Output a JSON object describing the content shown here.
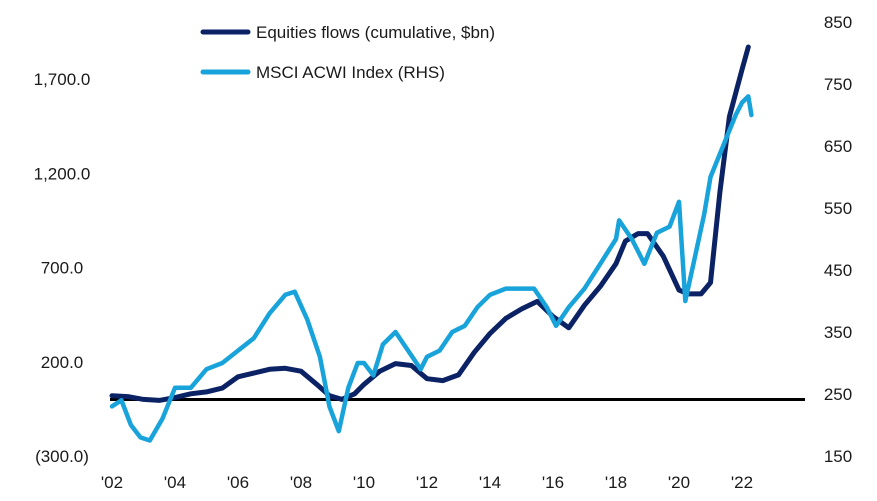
{
  "chart_data": {
    "type": "line",
    "title": "",
    "xlabel": "",
    "ylabel": "",
    "y2label": "",
    "xlim": [
      2002,
      2023.7
    ],
    "ylim": [
      -300,
      1900
    ],
    "y2lim": [
      150,
      850
    ],
    "grid": false,
    "legend_position": "top-center",
    "x_ticks": [
      "'02",
      "'04",
      "'06",
      "'08",
      "'10",
      "'12",
      "'14",
      "'16",
      "'18",
      "'20",
      "'22"
    ],
    "y_ticks_left": [
      "(300.0)",
      "200.0",
      "700.0",
      "1,200.0",
      "1,700.0"
    ],
    "y_ticks_left_values": [
      -300,
      200,
      700,
      1200,
      1700
    ],
    "y_ticks_left_colors": [
      "#e8112d",
      "#1a1a1a",
      "#1a1a1a",
      "#1a1a1a",
      "#1a1a1a"
    ],
    "y_ticks_right": [
      "150",
      "250",
      "350",
      "450",
      "550",
      "650",
      "750",
      "850"
    ],
    "y_ticks_right_values": [
      150,
      250,
      350,
      450,
      550,
      650,
      750,
      850
    ],
    "baseline_value": 0,
    "series": [
      {
        "name": "Equities flows (cumulative, $bn)",
        "axis": "left",
        "color": "#0b2265",
        "x": [
          2002.0,
          2002.5,
          2003.0,
          2003.5,
          2004.0,
          2004.5,
          2005.0,
          2005.5,
          2006.0,
          2006.5,
          2007.0,
          2007.5,
          2008.0,
          2008.5,
          2008.9,
          2009.3,
          2009.7,
          2010.0,
          2010.5,
          2011.0,
          2011.5,
          2012.0,
          2012.5,
          2013.0,
          2013.5,
          2014.0,
          2014.5,
          2015.0,
          2015.5,
          2016.0,
          2016.5,
          2017.0,
          2017.5,
          2018.0,
          2018.3,
          2018.7,
          2019.0,
          2019.5,
          2020.0,
          2020.3,
          2020.7,
          2021.0,
          2021.3,
          2021.6,
          2022.0,
          2022.2
        ],
        "values": [
          20,
          15,
          0,
          -5,
          10,
          30,
          40,
          60,
          120,
          140,
          160,
          165,
          150,
          80,
          20,
          0,
          30,
          80,
          150,
          190,
          180,
          110,
          100,
          130,
          250,
          350,
          430,
          480,
          520,
          440,
          380,
          500,
          600,
          720,
          840,
          880,
          880,
          760,
          580,
          560,
          560,
          620,
          1100,
          1500,
          1750,
          1870
        ]
      },
      {
        "name": "MSCI ACWI Index (RHS)",
        "axis": "right",
        "color": "#19a3db",
        "x": [
          2002.0,
          2002.3,
          2002.6,
          2002.9,
          2003.2,
          2003.6,
          2004.0,
          2004.5,
          2005.0,
          2005.5,
          2006.0,
          2006.5,
          2007.0,
          2007.5,
          2007.8,
          2008.2,
          2008.6,
          2008.9,
          2009.2,
          2009.5,
          2009.8,
          2010.0,
          2010.3,
          2010.6,
          2011.0,
          2011.4,
          2011.8,
          2012.0,
          2012.4,
          2012.8,
          2013.2,
          2013.6,
          2014.0,
          2014.5,
          2014.9,
          2015.4,
          2015.8,
          2016.1,
          2016.5,
          2017.0,
          2017.5,
          2018.0,
          2018.1,
          2018.5,
          2018.9,
          2019.3,
          2019.7,
          2020.0,
          2020.2,
          2020.5,
          2020.8,
          2021.0,
          2021.4,
          2021.8,
          2022.0,
          2022.2,
          2022.3
        ],
        "values": [
          230,
          240,
          200,
          180,
          175,
          210,
          260,
          260,
          290,
          300,
          320,
          340,
          380,
          410,
          415,
          370,
          310,
          230,
          190,
          260,
          300,
          300,
          280,
          330,
          350,
          320,
          290,
          310,
          320,
          350,
          360,
          390,
          410,
          420,
          420,
          420,
          390,
          360,
          390,
          420,
          460,
          500,
          530,
          500,
          460,
          510,
          520,
          560,
          400,
          470,
          540,
          600,
          650,
          700,
          720,
          730,
          700
        ]
      }
    ]
  }
}
